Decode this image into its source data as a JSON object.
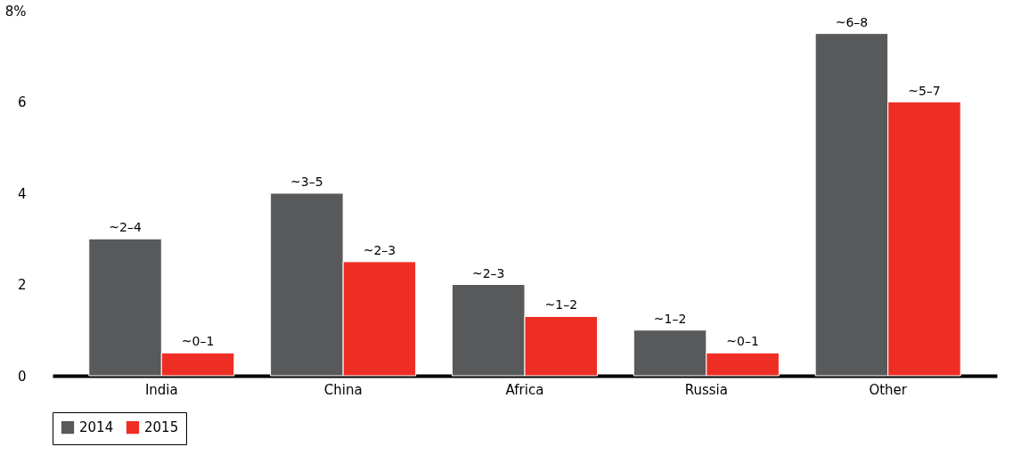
{
  "chart_data": {
    "type": "bar",
    "categories": [
      "India",
      "China",
      "Africa",
      "Russia",
      "Other"
    ],
    "series": [
      {
        "name": "2014",
        "color": "#58595b",
        "values": [
          3,
          4,
          2,
          1,
          7.5
        ],
        "value_labels": [
          "~2–4",
          "~3–5",
          "~2–3",
          "~1–2",
          "~6–8"
        ]
      },
      {
        "name": "2015",
        "color": "#ee2e24",
        "values": [
          0.5,
          2.5,
          1.3,
          0.5,
          6
        ],
        "value_labels": [
          "~0–1",
          "~2–3",
          "~1–2",
          "~0–1",
          "~5–7"
        ]
      }
    ],
    "ylim": [
      0,
      8
    ],
    "yticks": [
      0,
      2,
      4,
      6,
      {
        "value": 8,
        "label": "8%"
      }
    ],
    "grid": false,
    "legend": "bottom"
  }
}
